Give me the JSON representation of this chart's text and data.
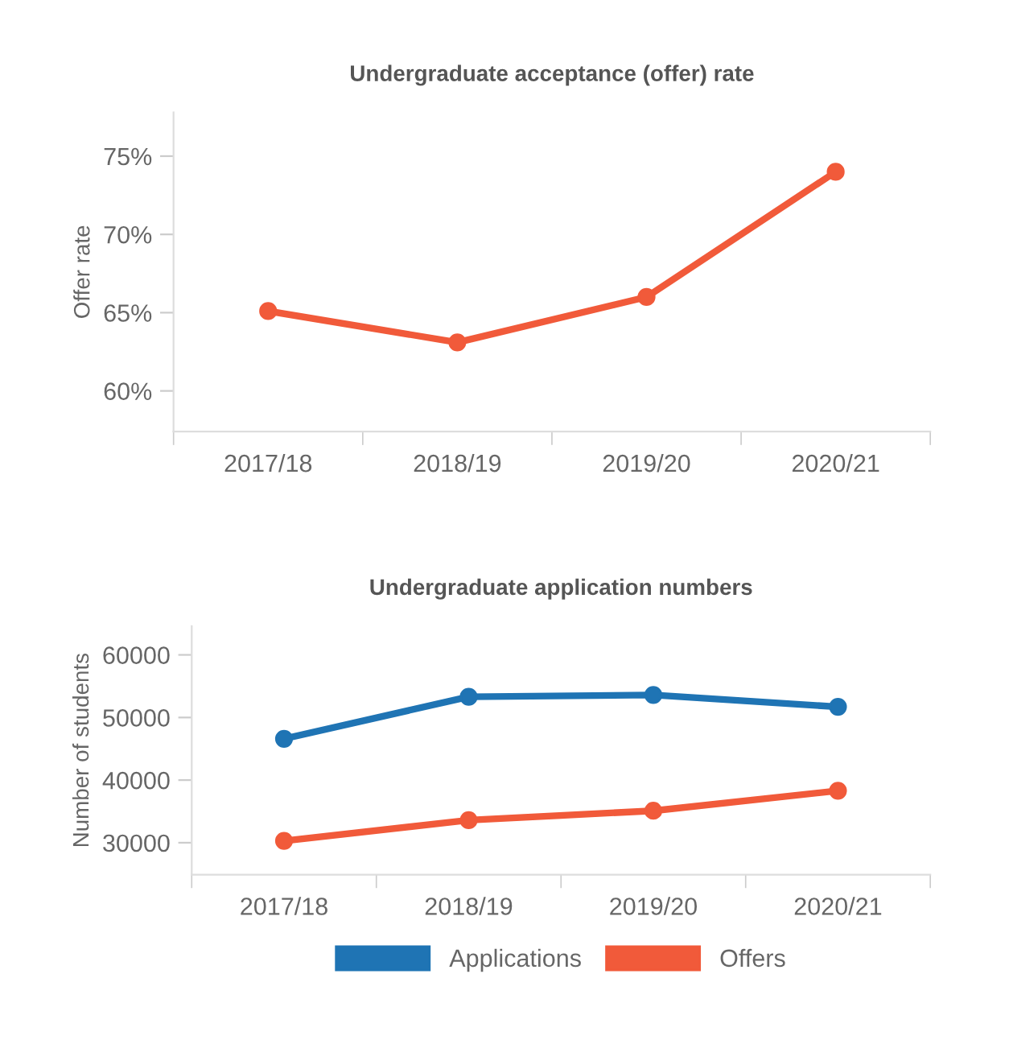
{
  "chart_data": [
    {
      "type": "line",
      "title": "Undergraduate acceptance (offer) rate",
      "ylabel": "Offer rate",
      "categories": [
        "2017/18",
        "2018/19",
        "2019/20",
        "2020/21"
      ],
      "series": [
        {
          "color": "#f15a3a",
          "values": [
            65.1,
            63.1,
            66.0,
            74.0
          ]
        }
      ],
      "ylim": [
        57.4,
        77.8
      ],
      "yticks": [
        {
          "value": 60,
          "label": "60%"
        },
        {
          "value": 65,
          "label": "65%"
        },
        {
          "value": 70,
          "label": "70%"
        },
        {
          "value": 75,
          "label": "75%"
        }
      ],
      "marker": "circle",
      "grid": false,
      "legend": false
    },
    {
      "type": "line",
      "title": "Undergraduate application numbers",
      "ylabel": "Number of students",
      "categories": [
        "2017/18",
        "2018/19",
        "2019/20",
        "2020/21"
      ],
      "series": [
        {
          "name": "Applications",
          "color": "#1f74b4",
          "values": [
            46600,
            53300,
            53600,
            51700
          ]
        },
        {
          "name": "Offers",
          "color": "#f15a3a",
          "values": [
            30300,
            33600,
            35100,
            38300
          ]
        }
      ],
      "ylim": [
        24900,
        64600
      ],
      "yticks": [
        30000,
        40000,
        50000,
        60000
      ],
      "marker": "circle",
      "grid": false,
      "legend": "bottom"
    }
  ]
}
